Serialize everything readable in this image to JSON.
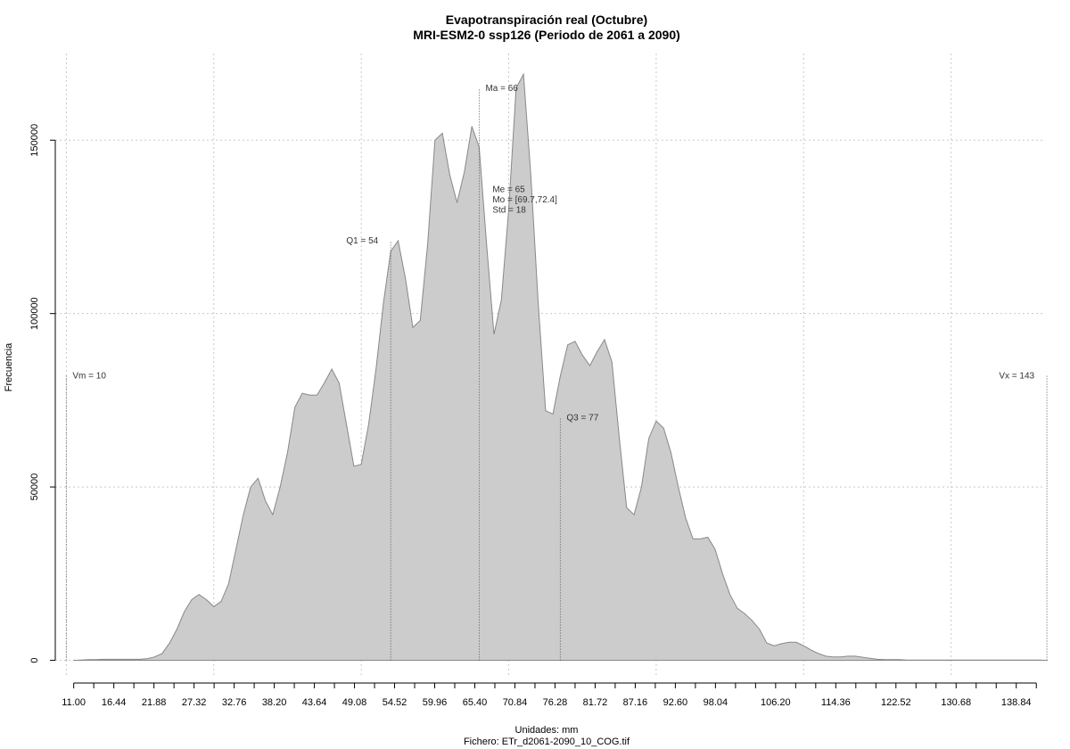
{
  "chart_data": {
    "type": "area",
    "title": "Evapotranspiración real (Octubre)",
    "subtitle": "MRI-ESM2-0 ssp126 (Periodo de 2061 a 2090)",
    "xlabel": "Unidades: mm",
    "ylabel": "Frecuencia",
    "footer": "Fichero: ETr_d2061-2090_10_COG.tif",
    "xlim": [
      8.5,
      142.5
    ],
    "ylim": [
      -5000,
      175000
    ],
    "fill_color": "#cccccc",
    "line_color": "#888888",
    "grid": true,
    "x_ticks": [
      11.0,
      13.72,
      16.44,
      19.16,
      21.88,
      24.6,
      27.32,
      30.04,
      32.76,
      35.48,
      38.2,
      40.92,
      43.64,
      46.36,
      49.08,
      51.8,
      54.52,
      57.24,
      59.96,
      62.68,
      65.4,
      68.12,
      70.84,
      73.56,
      76.28,
      79.0,
      81.72,
      84.44,
      87.16,
      89.88,
      92.6,
      95.32,
      98.04,
      100.76,
      103.48,
      106.2,
      108.92,
      111.64,
      114.36,
      117.08,
      119.8,
      122.52,
      125.24,
      127.96,
      130.68,
      133.4,
      136.12,
      138.84,
      141.56
    ],
    "x_tick_labels": [
      "11.00",
      "",
      "16.44",
      "",
      "21.88",
      "",
      "27.32",
      "",
      "32.76",
      "",
      "38.20",
      "",
      "43.64",
      "",
      "49.08",
      "",
      "54.52",
      "",
      "59.96",
      "",
      "65.40",
      "",
      "70.84",
      "",
      "76.28",
      "",
      "81.72",
      "",
      "87.16",
      "",
      "92.60",
      "",
      "98.04",
      "",
      "",
      "106.20",
      "",
      "",
      "114.36",
      "",
      "",
      "122.52",
      "",
      "",
      "130.68",
      "",
      "",
      "138.84",
      ""
    ],
    "y_ticks": [
      0,
      50000,
      100000,
      150000
    ],
    "y_tick_labels": [
      "0",
      "50000",
      "100000",
      "150000"
    ],
    "x_grid": [
      10,
      30,
      50,
      70,
      90,
      110,
      130
    ],
    "series": [
      {
        "x": [
          11,
          12,
          13,
          14,
          15,
          16,
          17,
          18,
          19,
          20,
          21,
          22,
          23,
          24,
          25,
          26,
          27,
          28,
          29,
          30,
          31,
          32,
          33,
          34,
          35,
          36,
          37,
          38,
          39,
          40,
          41,
          42,
          43,
          44,
          45,
          46,
          47,
          48,
          49,
          50,
          51,
          52,
          53,
          54,
          55,
          56,
          57,
          58,
          59,
          60,
          61,
          62,
          63,
          64,
          65,
          66,
          67,
          68,
          69,
          70,
          71,
          72,
          73,
          74,
          75,
          76,
          77,
          78,
          79,
          80,
          81,
          82,
          83,
          84,
          85,
          86,
          87,
          88,
          89,
          90,
          91,
          92,
          93,
          94,
          95,
          96,
          97,
          98,
          99,
          100,
          101,
          102,
          103,
          104,
          105,
          106,
          107,
          108,
          109,
          110,
          111,
          112,
          113,
          114,
          115,
          116,
          117,
          118,
          119,
          120,
          121,
          122,
          123,
          124,
          125,
          126,
          127,
          128,
          129,
          130,
          131,
          132,
          133,
          134,
          135,
          136,
          137,
          138,
          139,
          140,
          141,
          142,
          143
        ],
        "y": [
          0,
          100,
          200,
          200,
          300,
          300,
          300,
          300,
          300,
          300,
          500,
          1000,
          2000,
          5000,
          9000,
          14000,
          17500,
          19000,
          17500,
          15500,
          17000,
          22000,
          32000,
          42000,
          50000,
          52500,
          46000,
          42000,
          50000,
          60000,
          73000,
          77000,
          76500,
          76500,
          80000,
          84000,
          80000,
          68000,
          56000,
          56500,
          68000,
          84000,
          103000,
          118000,
          121000,
          110000,
          96000,
          98000,
          120000,
          150000,
          152000,
          140000,
          132000,
          141000,
          154000,
          148000,
          120000,
          94000,
          104000,
          130000,
          165000,
          169000,
          140000,
          103000,
          72000,
          71000,
          82000,
          91000,
          92000,
          88000,
          85000,
          89000,
          92500,
          86000,
          64000,
          44000,
          42000,
          50000,
          64000,
          69000,
          67000,
          60000,
          50000,
          41000,
          35000,
          35000,
          35500,
          32000,
          25000,
          19000,
          15000,
          13500,
          11500,
          9000,
          5000,
          4200,
          4800,
          5200,
          5200,
          4200,
          3000,
          2000,
          1200,
          1000,
          1000,
          1200,
          1200,
          900,
          600,
          300,
          200,
          200,
          200,
          100,
          100,
          100,
          100,
          100,
          100,
          100,
          100,
          100,
          100,
          100,
          100,
          100,
          100,
          100,
          100,
          100,
          100,
          100,
          0
        ]
      }
    ],
    "stat_lines": [
      {
        "x": 10,
        "top": 82000,
        "label": "Vm = 10",
        "anchor": "start"
      },
      {
        "x": 54,
        "top": 121000,
        "label": "Q1 = 54",
        "anchor": "end"
      },
      {
        "x": 66,
        "top": 165000,
        "label": "Ma = 66",
        "anchor": "start"
      },
      {
        "x": 77,
        "top": 70000,
        "label": "Q3 = 77",
        "anchor": "start"
      },
      {
        "x": 143,
        "top": 82000,
        "label": "Vx = 143",
        "anchor": "end"
      }
    ],
    "stats_block": [
      "Me = 65",
      "Mo = [69.7,72.4]",
      "Std = 18"
    ],
    "stats_block_anchor": {
      "x": 67.8,
      "y": 135000
    }
  }
}
